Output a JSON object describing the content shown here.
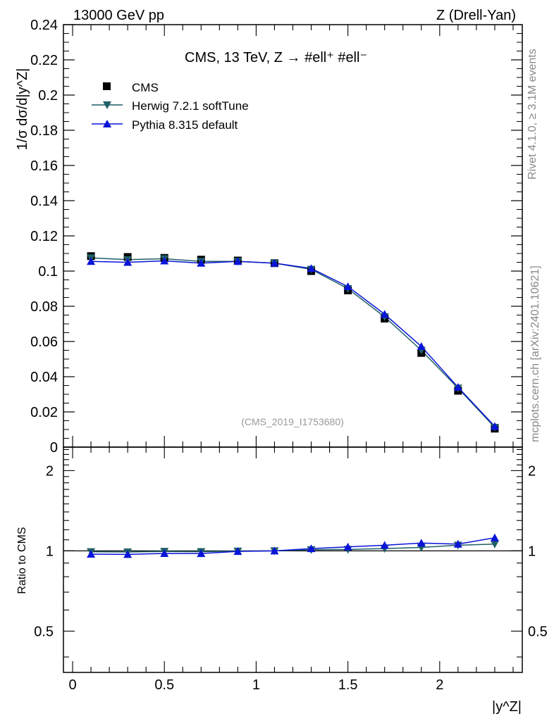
{
  "header": {
    "left": "13000 GeV pp",
    "right": "Z (Drell-Yan)"
  },
  "side_labels": {
    "rivet": "Rivet 4.1.0, ≥ 3.1M events",
    "mcplots": "mcplots.cern.ch [arXiv:2401.10621]"
  },
  "colors": {
    "cms": "#000000",
    "herwig": "#1f5f66",
    "pythia": "#0a14d8",
    "ref_label": "#999999"
  },
  "chart_data": {
    "type": "line",
    "title": "CMS, 13 TeV, Z →  #ell⁺ #ell⁻",
    "analysis_id": "(CMS_2019_I1753680)",
    "xlabel": "|y^Z|",
    "ylabel": "1/σ dσ/d|y^Z|",
    "xlim": [
      -0.05,
      2.45
    ],
    "ylim": [
      0,
      0.24
    ],
    "x_ticks": [
      0,
      0.5,
      1,
      1.5,
      2
    ],
    "x_tick_labels": [
      "0",
      "0.5",
      "1",
      "1.5",
      "2"
    ],
    "y_ticks": [
      0,
      0.02,
      0.04,
      0.06,
      0.08,
      0.1,
      0.12,
      0.14,
      0.16,
      0.18,
      0.2,
      0.22,
      0.24
    ],
    "y_tick_labels": [
      "0",
      "0.02",
      "0.04",
      "0.06",
      "0.08",
      "0.1",
      "0.12",
      "0.14",
      "0.16",
      "0.18",
      "0.2",
      "0.22",
      "0.24"
    ],
    "x": [
      0.1,
      0.3,
      0.5,
      0.7,
      0.9,
      1.1,
      1.3,
      1.5,
      1.7,
      1.9,
      2.1,
      2.3
    ],
    "series": [
      {
        "name": "CMS",
        "marker": "square",
        "values": [
          0.1085,
          0.108,
          0.1075,
          0.1065,
          0.106,
          0.1045,
          0.1,
          0.089,
          0.073,
          0.0535,
          0.032,
          0.0105
        ]
      },
      {
        "name": "Herwig 7.2.1 softTune",
        "marker": "triangle-down",
        "values": [
          0.1075,
          0.1065,
          0.107,
          0.1055,
          0.1055,
          0.1045,
          0.101,
          0.09,
          0.074,
          0.055,
          0.0335,
          0.0112
        ]
      },
      {
        "name": "Pythia 8.315 default",
        "marker": "triangle-up",
        "values": [
          0.1055,
          0.105,
          0.1058,
          0.1045,
          0.1055,
          0.1045,
          0.1015,
          0.0912,
          0.0755,
          0.0572,
          0.034,
          0.0118
        ]
      }
    ],
    "ratio": {
      "ylabel": "Ratio to CMS",
      "ylim": [
        0.35,
        2.45
      ],
      "y_ticks": [
        0.5,
        1,
        2
      ],
      "y_tick_labels": [
        "0.5",
        "1",
        "2"
      ],
      "series": [
        {
          "name": "Herwig 7.2.1 softTune",
          "values": [
            0.992,
            0.99,
            0.995,
            0.993,
            0.998,
            1.0,
            1.01,
            1.012,
            1.02,
            1.03,
            1.05,
            1.06
          ]
        },
        {
          "name": "Pythia 8.315 default",
          "values": [
            0.972,
            0.97,
            0.978,
            0.977,
            0.995,
            1.0,
            1.02,
            1.035,
            1.05,
            1.07,
            1.06,
            1.12
          ]
        }
      ]
    },
    "legend_position": "top-left"
  }
}
